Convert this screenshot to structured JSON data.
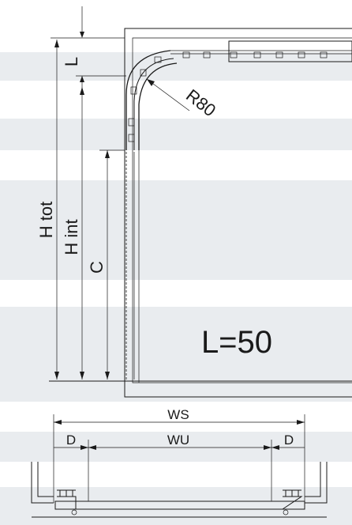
{
  "labels": {
    "l": "L",
    "h_tot": "H tot",
    "h_int": "H int",
    "c": "C",
    "r80": "R80",
    "l50": "L=50",
    "ws": "WS",
    "wu": "WU",
    "d_left": "D",
    "d_right": "D"
  },
  "colors": {
    "background": "#ffffff",
    "band": "#e9ecef",
    "line": "#1a1a1a"
  }
}
